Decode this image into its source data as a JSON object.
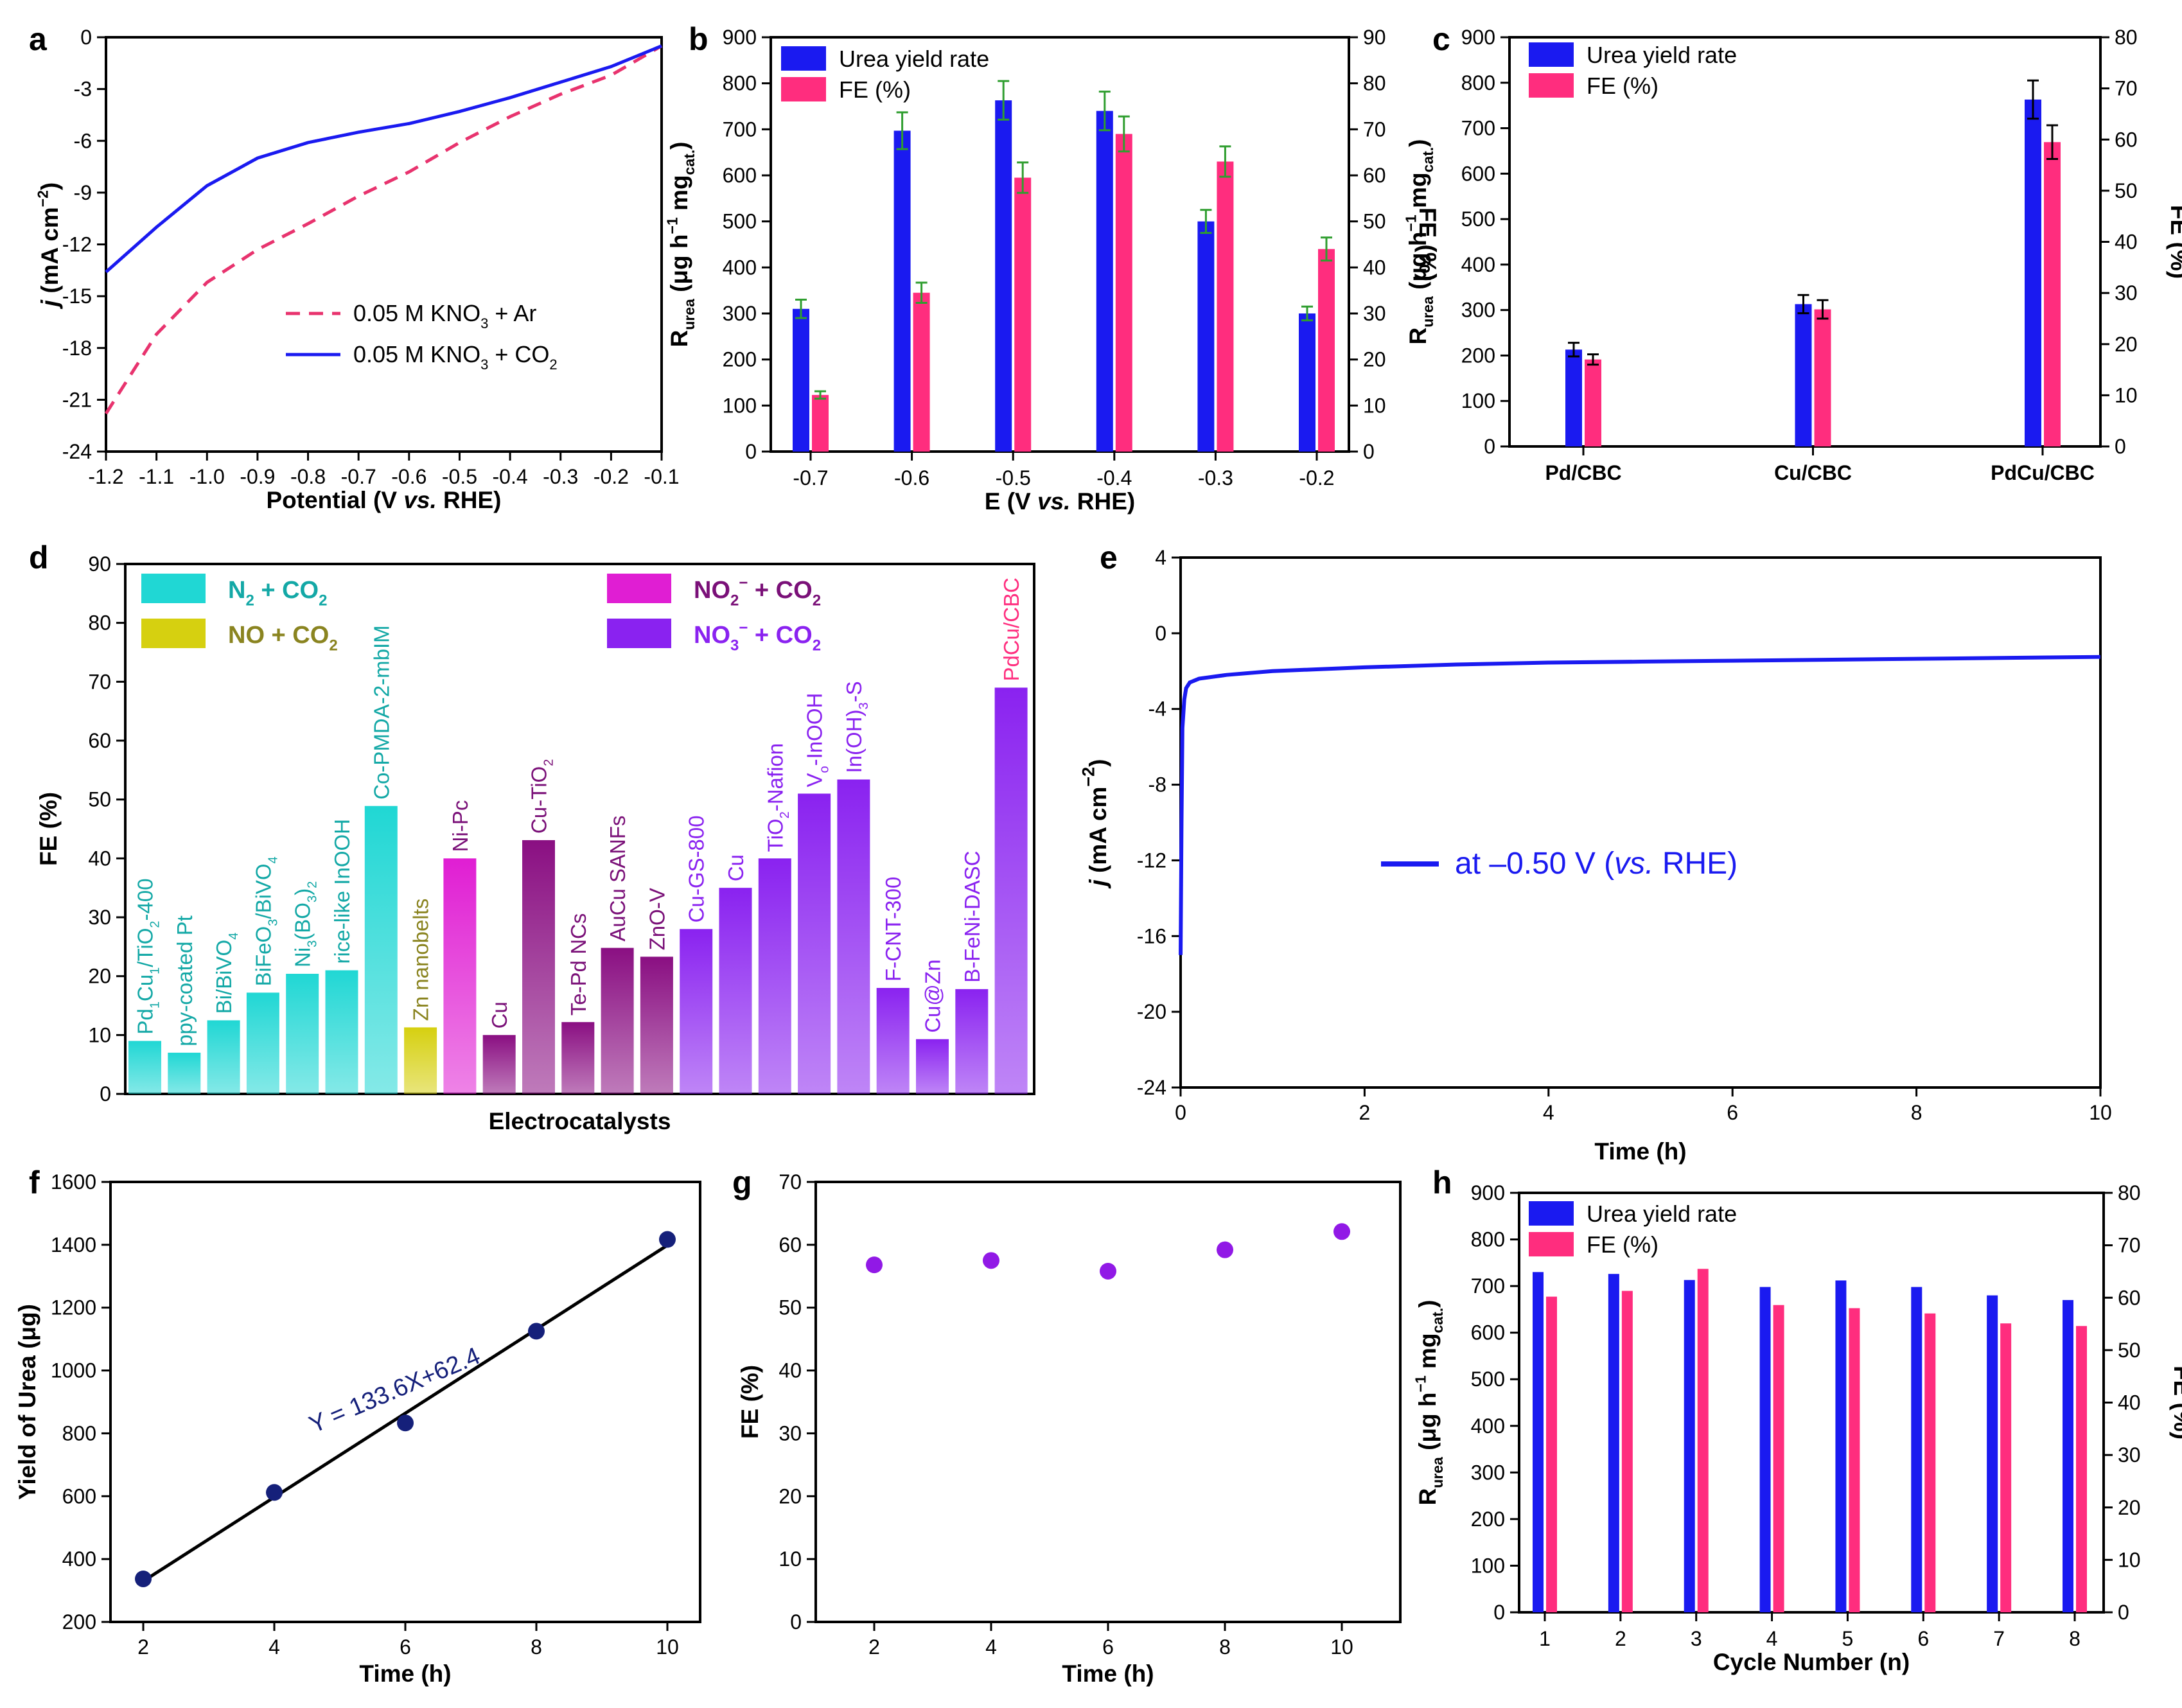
{
  "colors": {
    "blue": "#1a1af0",
    "pink": "#ff2d7e",
    "dashed_pink": "#e8336e",
    "err_green": "#2f9e2f",
    "cyan": "#20d7d4",
    "olive": "#d6d010",
    "magenta": "#e01ed3",
    "purple_dark": "#8a0f82",
    "purple": "#8a22f0",
    "navy": "#15207a",
    "violet_dot": "#9119e6"
  },
  "chart_data": [
    {
      "panel": "a",
      "type": "line",
      "xlabel_main": "Potential (V ",
      "xlabel_italic": "vs.",
      "xlabel_end": " RHE)",
      "ylabel_j": "j",
      "ylabel_rest": " (mA cm",
      "ylabel_sup": "−2",
      "ylabel_close": ")",
      "xlim": [
        -1.2,
        -0.1
      ],
      "ylim": [
        -24,
        0
      ],
      "xticks": [
        "-1.2",
        "-1.1",
        "-1.0",
        "-0.9",
        "-0.8",
        "-0.7",
        "-0.6",
        "-0.5",
        "-0.4",
        "-0.3",
        "-0.2",
        "-0.1"
      ],
      "yticks": [
        "0",
        "-3",
        "-6",
        "-9",
        "-12",
        "-15",
        "-18",
        "-21",
        "-24"
      ],
      "series": [
        {
          "name": "0.05 M KNO3 + Ar",
          "label_main": "0.05 M KNO",
          "label_sub": "3",
          "label_end": " + Ar",
          "style": "dashed",
          "x": [
            -1.2,
            -1.1,
            -1.0,
            -0.9,
            -0.8,
            -0.7,
            -0.6,
            -0.5,
            -0.4,
            -0.3,
            -0.2,
            -0.1
          ],
          "y": [
            -21.8,
            -17.2,
            -14.2,
            -12.3,
            -10.8,
            -9.2,
            -7.8,
            -6.1,
            -4.6,
            -3.3,
            -2.2,
            -0.5
          ]
        },
        {
          "name": "0.05 M KNO3 + CO2",
          "label_main": "0.05 M KNO",
          "label_sub": "3",
          "label_end": " + CO",
          "label_sub2": "2",
          "style": "solid",
          "x": [
            -1.2,
            -1.1,
            -1.0,
            -0.9,
            -0.8,
            -0.7,
            -0.6,
            -0.5,
            -0.4,
            -0.3,
            -0.2,
            -0.1
          ],
          "y": [
            -13.6,
            -11.0,
            -8.6,
            -7.0,
            -6.1,
            -5.5,
            -5.0,
            -4.3,
            -3.5,
            -2.6,
            -1.7,
            -0.5
          ]
        }
      ]
    },
    {
      "panel": "b",
      "type": "bar",
      "categories": [
        "-0.7",
        "-0.6",
        "-0.5",
        "-0.4",
        "-0.3",
        "-0.2"
      ],
      "xlabel_main": "E (V ",
      "xlabel_italic": "vs.",
      "xlabel_end": " RHE)",
      "ylabel_left": "R",
      "ylabel_left_sub": "urea",
      "ylabel_left_rest": " (μg h",
      "ylabel_left_sup": "−1",
      "ylabel_left_rest2": " mg",
      "ylabel_left_sub2": "cat.",
      "ylabel_left_close": ")",
      "ylabel_right": "FE (%)",
      "ylim_left": [
        0,
        900
      ],
      "ylim_right": [
        0,
        90
      ],
      "yticks_left": [
        "0",
        "100",
        "200",
        "300",
        "400",
        "500",
        "600",
        "700",
        "800",
        "900"
      ],
      "yticks_right": [
        "0",
        "10",
        "20",
        "30",
        "40",
        "50",
        "60",
        "70",
        "80",
        "90"
      ],
      "series": [
        {
          "name": "Urea yield rate",
          "values": [
            310,
            697,
            763,
            740,
            500,
            300
          ],
          "errors": [
            20,
            40,
            42,
            42,
            25,
            15
          ]
        },
        {
          "name": "FE (%)",
          "values": [
            12.3,
            34.5,
            59.5,
            69.0,
            63.0,
            44.0
          ],
          "errors": [
            0.8,
            2.2,
            3.3,
            3.8,
            3.3,
            2.5
          ]
        }
      ]
    },
    {
      "panel": "c",
      "type": "bar",
      "categories": [
        "Pd/CBC",
        "Cu/CBC",
        "PdCu/CBC"
      ],
      "ylabel_left": "R",
      "ylabel_left_sub": "urea",
      "ylabel_left_rest": " (μg h",
      "ylabel_left_sup": "−1",
      "ylabel_left_rest2": " mg",
      "ylabel_left_sub2": "cat.",
      "ylabel_left_close": ")",
      "ylabel_right": "FE (%)",
      "ylim_left": [
        0,
        900
      ],
      "ylim_right": [
        0,
        80
      ],
      "yticks_left": [
        "0",
        "100",
        "200",
        "300",
        "400",
        "500",
        "600",
        "700",
        "800",
        "900"
      ],
      "yticks_right": [
        "0",
        "10",
        "20",
        "30",
        "40",
        "50",
        "60",
        "70",
        "80"
      ],
      "series": [
        {
          "name": "Urea yield rate",
          "values": [
            213,
            313,
            763
          ],
          "errors": [
            15,
            20,
            42
          ]
        },
        {
          "name": "FE (%)",
          "values": [
            17.0,
            26.8,
            59.5
          ],
          "errors": [
            1.0,
            1.8,
            3.3
          ]
        }
      ]
    },
    {
      "panel": "d",
      "type": "bar",
      "xlabel": "Electrocatalysts",
      "ylabel": "FE (%)",
      "ylim": [
        0,
        90
      ],
      "yticks": [
        "0",
        "10",
        "20",
        "30",
        "40",
        "50",
        "60",
        "70",
        "80",
        "90"
      ],
      "legend": [
        {
          "main": "N",
          "sub": "2",
          "end": " + CO",
          "sub2": "2",
          "group": "N2"
        },
        {
          "main": "NO + CO",
          "sub2": "2",
          "group": "NO"
        },
        {
          "main": "NO",
          "sub": "2",
          "sup": "−",
          "end": " + CO",
          "sub2": "2",
          "group": "NO2"
        },
        {
          "main": "NO",
          "sub": "3",
          "sup": "−",
          "end": " + CO",
          "sub2": "2",
          "group": "NO3"
        }
      ],
      "bars": [
        {
          "label": "Pd1Cu1/TiO2-400",
          "value": 9,
          "group": "N2"
        },
        {
          "label": "ppy-coated Pt",
          "value": 7,
          "group": "N2"
        },
        {
          "label": "Bi/BiVO4",
          "value": 12.5,
          "group": "N2"
        },
        {
          "label": "BiFeO3/BiVO4",
          "value": 17.2,
          "group": "N2"
        },
        {
          "label": "Ni3(BO3)2",
          "value": 20.4,
          "group": "N2"
        },
        {
          "label": "rice-like InOOH",
          "value": 21,
          "group": "N2"
        },
        {
          "label": "Co-PMDA-2-mbIM",
          "value": 48.9,
          "group": "N2"
        },
        {
          "label": "Zn nanobelts",
          "value": 11.3,
          "group": "NO"
        },
        {
          "label": "Ni-Pc",
          "value": 40,
          "group": "NO2a"
        },
        {
          "label": "Cu",
          "value": 10,
          "group": "NO2b"
        },
        {
          "label": "Cu-TiO2",
          "value": 43.1,
          "group": "NO2b"
        },
        {
          "label": "Te-Pd NCs",
          "value": 12.2,
          "group": "NO2b"
        },
        {
          "label": "AuCu SANFs",
          "value": 24.8,
          "group": "NO2b"
        },
        {
          "label": "ZnO-V",
          "value": 23.3,
          "group": "NO2b"
        },
        {
          "label": "Cu-GS-800",
          "value": 28,
          "group": "NO3"
        },
        {
          "label": "Cu",
          "value": 35,
          "group": "NO3"
        },
        {
          "label": "TiO2-Nafion",
          "value": 40,
          "group": "NO3"
        },
        {
          "label": "Vo-InOOH",
          "value": 51,
          "group": "NO3"
        },
        {
          "label": "In(OH)3-S",
          "value": 53.4,
          "group": "NO3"
        },
        {
          "label": "F-CNT-300",
          "value": 18,
          "group": "NO3"
        },
        {
          "label": "Cu@Zn",
          "value": 9.3,
          "group": "NO3"
        },
        {
          "label": "B-FeNi-DASC",
          "value": 17.8,
          "group": "NO3"
        },
        {
          "label": "PdCu/CBC",
          "value": 69,
          "group": "NO3"
        }
      ],
      "bar_labels_markup": [
        {
          "parts": [
            [
              "Pd",
              "n"
            ],
            [
              "1",
              "sub"
            ],
            [
              "Cu",
              "n"
            ],
            [
              "1",
              "sub"
            ],
            [
              "/TiO",
              "n"
            ],
            [
              "2",
              "sub"
            ],
            [
              "-400",
              "n"
            ]
          ]
        },
        {
          "parts": [
            [
              "ppy-coated Pt",
              "n"
            ]
          ]
        },
        {
          "parts": [
            [
              "Bi/BiVO",
              "n"
            ],
            [
              "4",
              "sub"
            ]
          ]
        },
        {
          "parts": [
            [
              "BiFeO",
              "n"
            ],
            [
              "3",
              "sub"
            ],
            [
              "/BiVO",
              "n"
            ],
            [
              "4",
              "sub"
            ]
          ]
        },
        {
          "parts": [
            [
              "Ni",
              "n"
            ],
            [
              "3",
              "sub"
            ],
            [
              "(BO",
              "n"
            ],
            [
              "3",
              "sub"
            ],
            [
              ")",
              "n"
            ],
            [
              "2",
              "sub"
            ]
          ]
        },
        {
          "parts": [
            [
              "rice-like InOOH",
              "n"
            ]
          ]
        },
        {
          "parts": [
            [
              "Co-PMDA-2-mbIM",
              "n"
            ]
          ]
        },
        {
          "parts": [
            [
              "Zn nanobelts",
              "n"
            ]
          ]
        },
        {
          "parts": [
            [
              "Ni-Pc",
              "n"
            ]
          ]
        },
        {
          "parts": [
            [
              "Cu",
              "n"
            ]
          ]
        },
        {
          "parts": [
            [
              "Cu-TiO",
              "n"
            ],
            [
              "2",
              "sub"
            ]
          ]
        },
        {
          "parts": [
            [
              "Te-Pd NCs",
              "n"
            ]
          ]
        },
        {
          "parts": [
            [
              "AuCu SANFs",
              "n"
            ]
          ]
        },
        {
          "parts": [
            [
              "ZnO-V",
              "n"
            ]
          ]
        },
        {
          "parts": [
            [
              "Cu-GS-800",
              "n"
            ]
          ]
        },
        {
          "parts": [
            [
              "Cu",
              "n"
            ]
          ]
        },
        {
          "parts": [
            [
              "TiO",
              "n"
            ],
            [
              "2",
              "sub"
            ],
            [
              "-Nafion",
              "n"
            ]
          ]
        },
        {
          "parts": [
            [
              "V",
              "n"
            ],
            [
              "o",
              "sub"
            ],
            [
              "-InOOH",
              "n"
            ]
          ]
        },
        {
          "parts": [
            [
              "In(OH)",
              "n"
            ],
            [
              "3",
              "sub"
            ],
            [
              "-S",
              "n"
            ]
          ]
        },
        {
          "parts": [
            [
              "F-CNT-300",
              "n"
            ]
          ]
        },
        {
          "parts": [
            [
              "Cu@Zn",
              "n"
            ]
          ]
        },
        {
          "parts": [
            [
              "B-FeNi-DASC",
              "n"
            ]
          ]
        },
        {
          "parts": [
            [
              "PdCu/CBC",
              "n"
            ]
          ]
        }
      ]
    },
    {
      "panel": "e",
      "type": "line",
      "xlabel": "Time (h)",
      "ylabel_j": "j",
      "ylabel_rest": " (mA cm",
      "ylabel_sup": "−2",
      "ylabel_close": ")",
      "xlim": [
        0,
        10
      ],
      "ylim": [
        -24,
        4
      ],
      "xticks": [
        "0",
        "2",
        "4",
        "6",
        "8",
        "10"
      ],
      "yticks": [
        "4",
        "0",
        "-4",
        "-8",
        "-12",
        "-16",
        "-20",
        "-24"
      ],
      "legend_main": "at –0.50 V (",
      "legend_italic": "vs.",
      "legend_end": " RHE)",
      "series": [
        {
          "name": "at –0.50 V (vs. RHE)",
          "x": [
            0,
            0.01,
            0.02,
            0.04,
            0.06,
            0.1,
            0.2,
            0.5,
            1,
            2,
            3,
            4,
            5,
            6,
            7,
            8,
            9,
            10
          ],
          "y": [
            -17,
            -10,
            -5,
            -3.5,
            -2.9,
            -2.6,
            -2.4,
            -2.2,
            -2.0,
            -1.8,
            -1.65,
            -1.55,
            -1.5,
            -1.45,
            -1.4,
            -1.35,
            -1.3,
            -1.25
          ]
        }
      ]
    },
    {
      "panel": "f",
      "type": "scatter",
      "xlabel": "Time (h)",
      "ylabel": "Yield of Urea (μg)",
      "xlim": [
        1.5,
        10.5
      ],
      "ylim": [
        200,
        1600
      ],
      "xticks": [
        "2",
        "4",
        "6",
        "8",
        "10"
      ],
      "yticks": [
        "200",
        "400",
        "600",
        "800",
        "1000",
        "1200",
        "1400",
        "1600"
      ],
      "x": [
        2,
        4,
        6,
        8,
        10
      ],
      "y": [
        337,
        612,
        833,
        1125,
        1417
      ],
      "fit": {
        "slope": 133.6,
        "intercept": 62.4,
        "label": "Y = 133.6X+62.4"
      }
    },
    {
      "panel": "g",
      "type": "scatter",
      "xlabel": "Time (h)",
      "ylabel": "FE (%)",
      "xlim": [
        1,
        11
      ],
      "ylim": [
        0,
        70
      ],
      "xticks": [
        "2",
        "4",
        "6",
        "8",
        "10"
      ],
      "yticks": [
        "0",
        "10",
        "20",
        "30",
        "40",
        "50",
        "60",
        "70"
      ],
      "x": [
        2,
        4,
        6,
        8,
        10
      ],
      "y": [
        56.8,
        57.5,
        55.8,
        59.2,
        62.1
      ]
    },
    {
      "panel": "h",
      "type": "bar",
      "categories": [
        "1",
        "2",
        "3",
        "4",
        "5",
        "6",
        "7",
        "8"
      ],
      "xlabel": "Cycle Number (n)",
      "ylabel_left": "R",
      "ylabel_left_sub": "urea",
      "ylabel_left_rest": " (μg h",
      "ylabel_left_sup": "−1",
      "ylabel_left_rest2": " mg",
      "ylabel_left_sub2": "cat.",
      "ylabel_left_close": ")",
      "ylabel_right": "FE (%)",
      "ylim_left": [
        0,
        900
      ],
      "ylim_right": [
        0,
        80
      ],
      "yticks_left": [
        "0",
        "100",
        "200",
        "300",
        "400",
        "500",
        "600",
        "700",
        "800",
        "900"
      ],
      "yticks_right": [
        "0",
        "10",
        "20",
        "30",
        "40",
        "50",
        "60",
        "70",
        "80"
      ],
      "series": [
        {
          "name": "Urea yield rate",
          "values": [
            730,
            726,
            713,
            698,
            712,
            698,
            680,
            670
          ]
        },
        {
          "name": "FE (%)",
          "values": [
            60.2,
            61.3,
            65.5,
            58.6,
            58.0,
            57.0,
            55.1,
            54.6
          ]
        }
      ]
    }
  ]
}
